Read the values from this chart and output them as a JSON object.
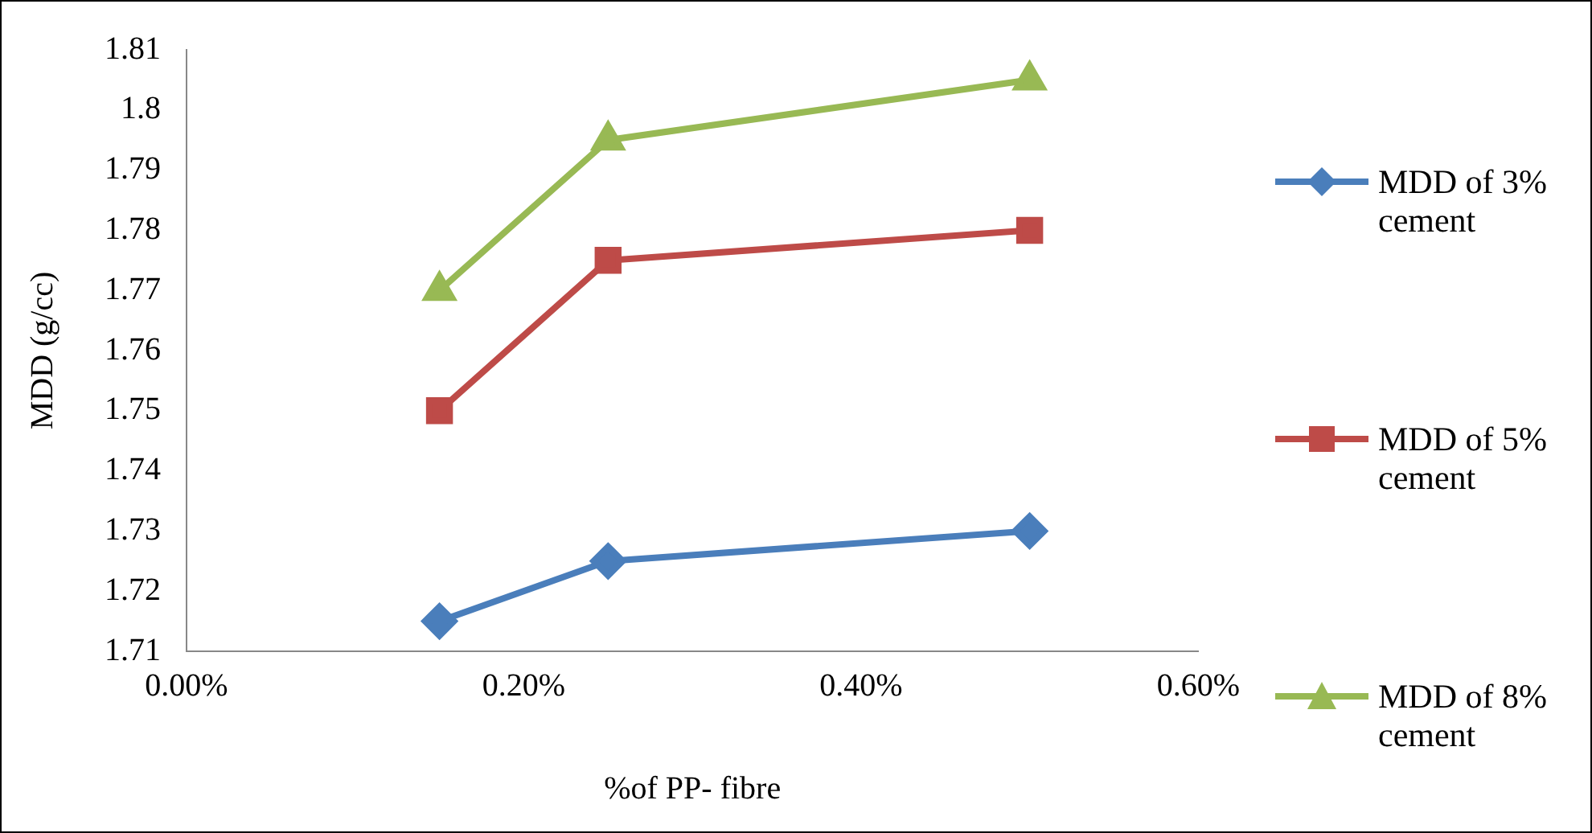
{
  "chart_data": {
    "type": "line",
    "xlabel": "%of PP- fibre",
    "ylabel": "MDD (g/cc)",
    "x": [
      0.15,
      0.25,
      0.5
    ],
    "xlim": [
      0,
      0.6
    ],
    "xticks": [
      {
        "value": 0,
        "label": "0.00%"
      },
      {
        "value": 0.2,
        "label": "0.20%"
      },
      {
        "value": 0.4,
        "label": "0.40%"
      },
      {
        "value": 0.6,
        "label": "0.60%"
      }
    ],
    "ylim": [
      1.71,
      1.81
    ],
    "yticks": [
      1.71,
      1.72,
      1.73,
      1.74,
      1.75,
      1.76,
      1.77,
      1.78,
      1.79,
      1.8,
      1.81
    ],
    "grid": false,
    "legend": "right",
    "line_style": "solid",
    "series": [
      {
        "name": "MDD of 3% cement",
        "color": "#4a7ebb",
        "marker": "diamond",
        "values": [
          1.715,
          1.725,
          1.73
        ]
      },
      {
        "name": "MDD of 5% cement",
        "color": "#be4b48",
        "marker": "square",
        "values": [
          1.75,
          1.775,
          1.78
        ]
      },
      {
        "name": "MDD of 8% cement",
        "color": "#98b954",
        "marker": "triangle",
        "values": [
          1.77,
          1.795,
          1.805
        ]
      }
    ]
  }
}
